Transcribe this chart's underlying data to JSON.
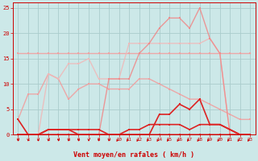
{
  "x": [
    0,
    1,
    2,
    3,
    4,
    5,
    6,
    7,
    8,
    9,
    10,
    11,
    12,
    13,
    14,
    15,
    16,
    17,
    18,
    19,
    20,
    21,
    22,
    23
  ],
  "series": [
    {
      "y": [
        16,
        16,
        16,
        16,
        16,
        16,
        16,
        16,
        16,
        16,
        16,
        16,
        16,
        16,
        16,
        16,
        16,
        16,
        16,
        16,
        16,
        16,
        16,
        16
      ],
      "color": "#f0a0a0",
      "lw": 1.0,
      "alpha": 0.9
    },
    {
      "y": [
        3,
        8,
        8,
        12,
        11,
        7,
        9,
        10,
        10,
        9,
        9,
        9,
        11,
        11,
        10,
        9,
        8,
        7,
        7,
        6,
        5,
        4,
        3,
        3
      ],
      "color": "#f0a0a0",
      "lw": 1.0,
      "alpha": 0.9
    },
    {
      "y": [
        0,
        0,
        0,
        12,
        11,
        14,
        14,
        15,
        11,
        11,
        11,
        18,
        18,
        18,
        18,
        18,
        18,
        18,
        18,
        19,
        16,
        0,
        0,
        0
      ],
      "color": "#f0b8b8",
      "lw": 1.0,
      "alpha": 0.85
    },
    {
      "y": [
        0,
        0,
        0,
        0,
        0,
        0,
        0,
        0,
        0,
        11,
        11,
        11,
        16,
        18,
        21,
        23,
        23,
        21,
        25,
        19,
        16,
        0,
        0,
        0
      ],
      "color": "#f08888",
      "lw": 1.0,
      "alpha": 0.85
    },
    {
      "y": [
        0,
        0,
        0,
        0,
        0,
        0,
        0,
        0,
        0,
        0,
        0,
        0,
        0,
        0,
        4,
        4,
        6,
        5,
        7,
        2,
        2,
        1,
        0,
        0
      ],
      "color": "#dd2222",
      "lw": 1.2,
      "alpha": 1.0
    },
    {
      "y": [
        0,
        0,
        0,
        1,
        1,
        1,
        1,
        1,
        1,
        0,
        0,
        1,
        1,
        2,
        2,
        2,
        2,
        1,
        2,
        2,
        2,
        1,
        0,
        0
      ],
      "color": "#dd2222",
      "lw": 1.2,
      "alpha": 1.0
    },
    {
      "y": [
        3,
        0,
        0,
        1,
        1,
        1,
        0,
        0,
        0,
        0,
        0,
        0,
        0,
        0,
        0,
        0,
        0,
        0,
        0,
        0,
        0,
        0,
        0,
        0
      ],
      "color": "#dd2222",
      "lw": 1.2,
      "alpha": 1.0
    }
  ],
  "bg_color": "#cce8e8",
  "grid_color": "#aacccc",
  "xlabel": "Vent moyen/en rafales ( km/h )",
  "ylim": [
    0,
    26
  ],
  "xlim": [
    -0.5,
    23.5
  ],
  "yticks": [
    0,
    5,
    10,
    15,
    20,
    25
  ],
  "xticks": [
    0,
    1,
    2,
    3,
    4,
    5,
    6,
    7,
    8,
    9,
    10,
    11,
    12,
    13,
    14,
    15,
    16,
    17,
    18,
    19,
    20,
    21,
    22,
    23
  ],
  "arrow_straight": [
    0,
    1,
    2,
    3,
    4,
    5,
    6,
    7,
    8,
    9
  ],
  "arrow_diagonal": [
    10,
    11,
    12,
    13,
    14,
    15,
    16,
    17,
    18,
    19,
    20,
    21,
    22,
    23
  ]
}
